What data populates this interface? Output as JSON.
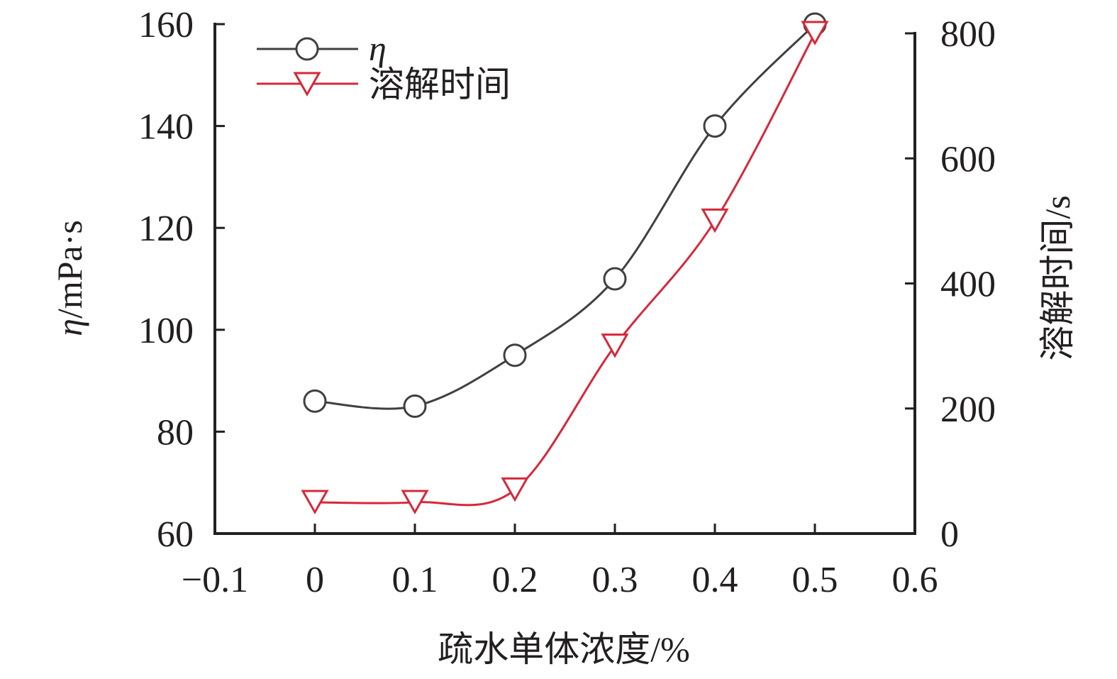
{
  "chart_data": {
    "type": "line",
    "x": [
      0,
      0.1,
      0.2,
      0.3,
      0.4,
      0.5
    ],
    "series": [
      {
        "name": "η",
        "axis": "left",
        "marker": "circle",
        "color": "#404040",
        "values": [
          86,
          85,
          95,
          110,
          140,
          160
        ]
      },
      {
        "name": "溶解时间",
        "axis": "right",
        "marker": "triangle-down",
        "color": "#d6283a",
        "values": [
          50,
          50,
          70,
          300,
          500,
          800
        ]
      }
    ],
    "xlabel": "疏水单体浓度/%",
    "ylabel_left_symbol": "η",
    "ylabel_left_unit": "/mPa·s",
    "ylabel_right": "溶解时间/s",
    "xlim": [
      -0.1,
      0.6
    ],
    "ylim_left": [
      60,
      160
    ],
    "ylim_right": [
      0,
      800
    ],
    "xticks": [
      -0.1,
      0,
      0.1,
      0.2,
      0.3,
      0.4,
      0.5,
      0.6
    ],
    "xtick_labels": [
      "−0.1",
      "0",
      "0.1",
      "0.2",
      "0.3",
      "0.4",
      "0.5",
      "0.6"
    ],
    "yticks_left": [
      60,
      80,
      100,
      120,
      140,
      160
    ],
    "yticks_left_labels": [
      "60",
      "80",
      "100",
      "120",
      "140",
      "160"
    ],
    "yticks_right": [
      0,
      200,
      400,
      600,
      800
    ],
    "yticks_right_labels": [
      "0",
      "200",
      "400",
      "600",
      "800"
    ],
    "grid": false,
    "legend_position": "top-left",
    "curve": "smooth"
  }
}
